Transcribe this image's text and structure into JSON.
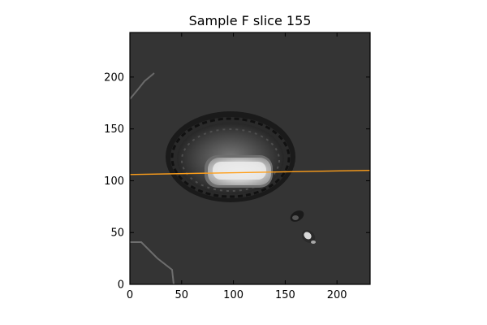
{
  "title": "Sample F slice 155",
  "chart_data": {
    "type": "image",
    "title": "Sample F slice 155",
    "xlim": [
      0,
      232
    ],
    "ylim": [
      0,
      243
    ],
    "xticks": [
      0,
      50,
      100,
      150,
      200
    ],
    "yticks": [
      0,
      50,
      100,
      150,
      200
    ],
    "overlay_line": {
      "color": "#ff9f1a",
      "x": [
        0,
        232
      ],
      "y": [
        106,
        110
      ]
    }
  }
}
